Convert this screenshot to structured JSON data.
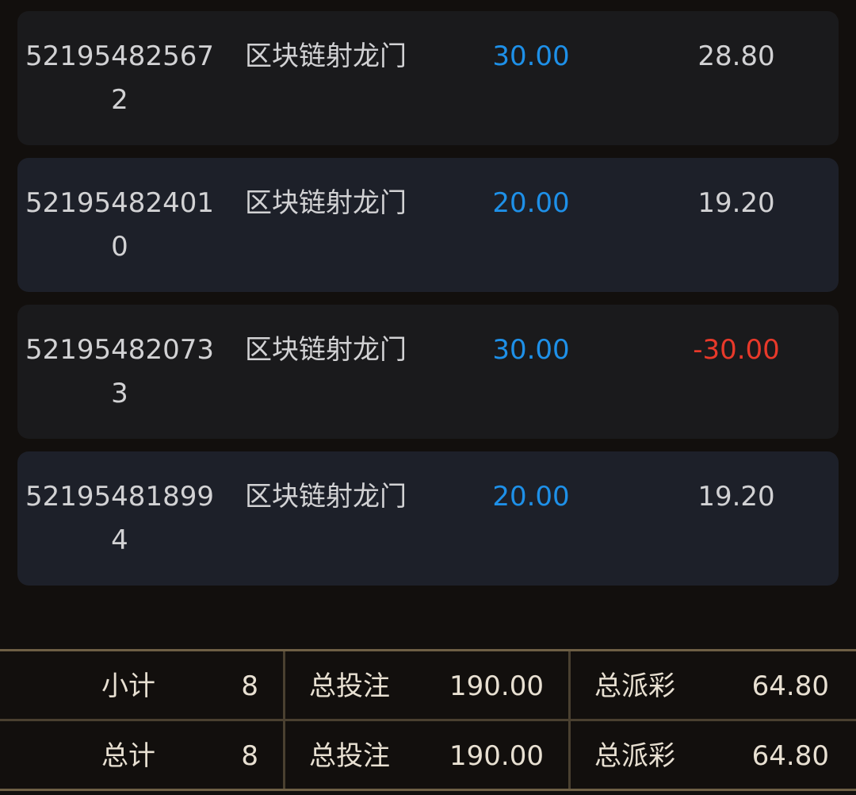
{
  "records": [
    {
      "id": "521954825672",
      "game": "区块链射龙门",
      "bet": "30.00",
      "payout": "28.80",
      "negative": false
    },
    {
      "id": "521954824010",
      "game": "区块链射龙门",
      "bet": "20.00",
      "payout": "19.20",
      "negative": false
    },
    {
      "id": "521954820733",
      "game": "区块链射龙门",
      "bet": "30.00",
      "payout": "-30.00",
      "negative": true
    },
    {
      "id": "521954818994",
      "game": "区块链射龙门",
      "bet": "20.00",
      "payout": "19.20",
      "negative": false
    }
  ],
  "summary": [
    {
      "label": "小计",
      "count": "8",
      "bet_label": "总投注",
      "bet": "190.00",
      "payout_label": "总派彩",
      "payout": "64.80"
    },
    {
      "label": "总计",
      "count": "8",
      "bet_label": "总投注",
      "bet": "190.00",
      "payout_label": "总派彩",
      "payout": "64.80"
    }
  ],
  "colors": {
    "bet": "#1e90e8",
    "negative": "#e8392a",
    "border": "#6e5f45"
  }
}
